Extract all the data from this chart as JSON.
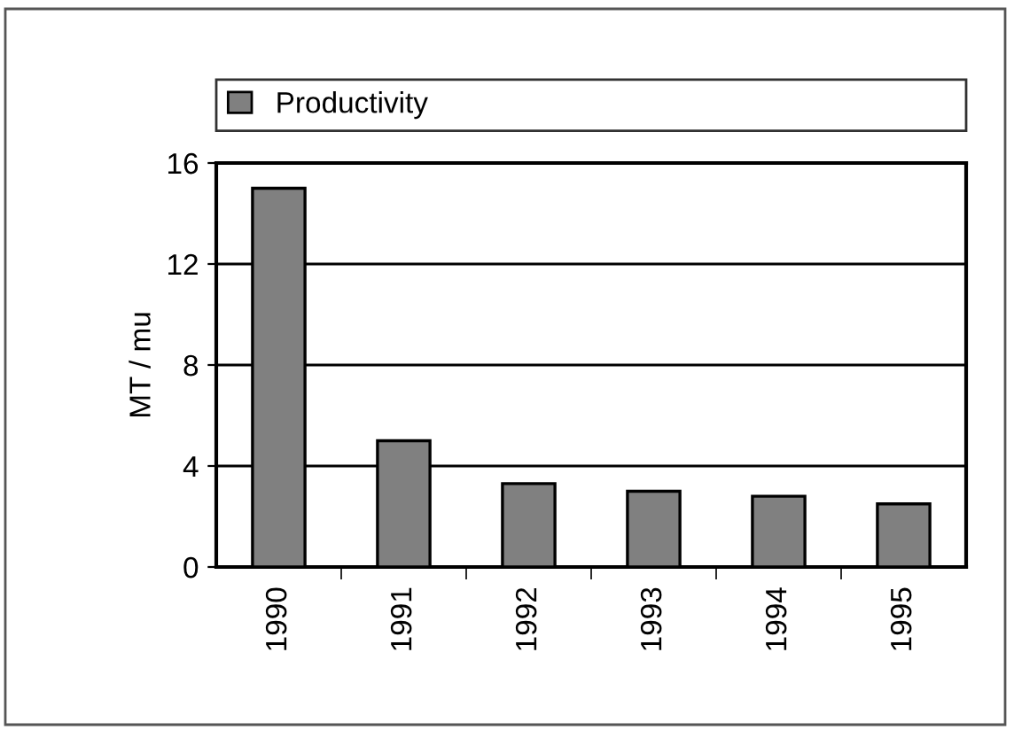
{
  "chart_data": {
    "type": "bar",
    "ylabel": "MT / mu",
    "categories": [
      "1990",
      "1991",
      "1992",
      "1993",
      "1994",
      "1995"
    ],
    "series": [
      {
        "name": "Productivity",
        "color": "#808080",
        "values": [
          15,
          5,
          3.3,
          3.0,
          2.8,
          2.5
        ]
      }
    ],
    "ylim": [
      0,
      16
    ],
    "yticks": [
      0,
      4,
      8,
      12,
      16
    ],
    "grid": "y",
    "legend": "top"
  }
}
